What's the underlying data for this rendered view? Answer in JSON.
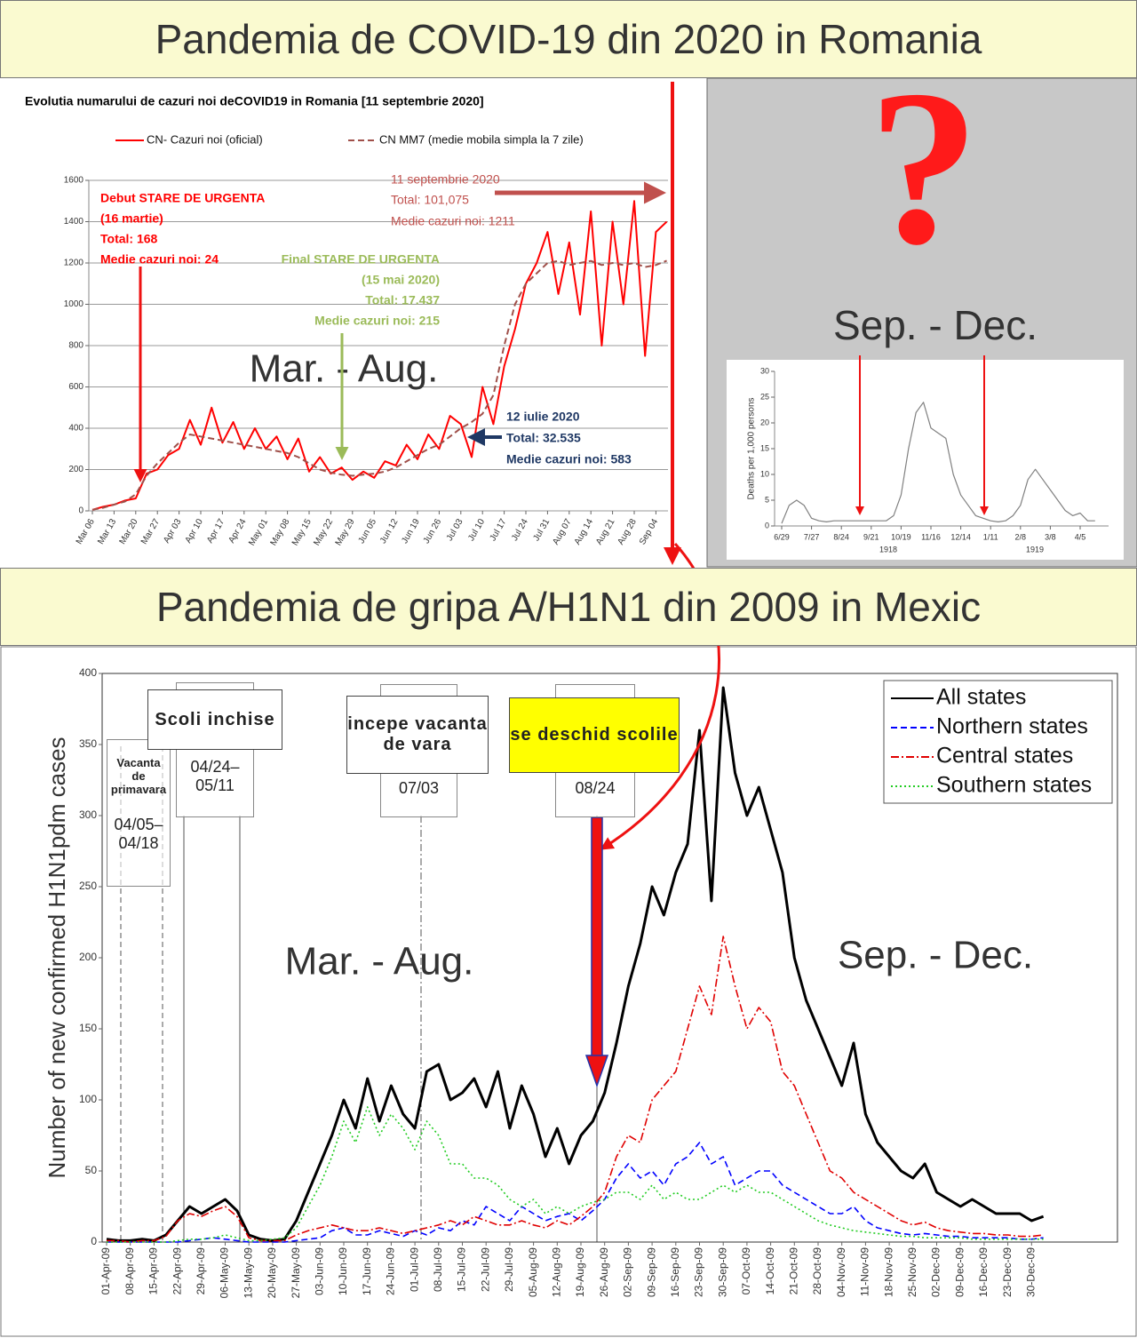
{
  "banners": [
    "Pandemia de COVID-19 din 2020 in Romania",
    "Pandemia de gripa A/H1N1 din 2009 in Mexic"
  ],
  "panel": {
    "symbol": "?",
    "label": "Sep. - Dec."
  },
  "chart_data": [
    {
      "type": "line",
      "title": "Evolutia numarului de cazuri noi deCOVID19  in Romania [11 septembrie 2020]",
      "categories": [
        "Mar 06",
        null,
        "Mar 13",
        null,
        "Mar 20",
        null,
        "Mar 27",
        null,
        "Apr 03",
        null,
        "Apr 10",
        null,
        "Apr 17",
        null,
        "Apr 24",
        null,
        "May 01",
        null,
        "May 08",
        null,
        "May 15",
        null,
        "May 22",
        null,
        "May 29",
        null,
        "Jun 05",
        null,
        "Jun 12",
        null,
        "Jun 19",
        null,
        "Jun 26",
        null,
        "Jul 03",
        null,
        "Jul 10",
        null,
        "Jul 17",
        null,
        "Jul 24",
        null,
        "Jul 31",
        null,
        "Aug 07",
        null,
        "Aug 14",
        null,
        "Aug 21",
        null,
        "Aug 28",
        null,
        "Sep 04",
        null
      ],
      "series": [
        {
          "name": "CN- Cazuri noi (oficial)",
          "color": "#ff0000",
          "dash": "solid",
          "values": [
            5,
            20,
            30,
            50,
            60,
            180,
            200,
            270,
            300,
            440,
            320,
            500,
            330,
            430,
            300,
            400,
            300,
            360,
            250,
            350,
            190,
            260,
            180,
            210,
            150,
            190,
            160,
            240,
            220,
            320,
            250,
            370,
            300,
            460,
            420,
            260,
            600,
            420,
            700,
            880,
            1100,
            1200,
            1350,
            1050,
            1300,
            950,
            1450,
            800,
            1400,
            1000,
            1500,
            750,
            1350,
            1400
          ]
        },
        {
          "name": "CN MM7 (medie mobila simpla la 7 zile)",
          "color": "#a0504a",
          "dash": "dashed",
          "values": [
            5,
            15,
            30,
            45,
            80,
            170,
            230,
            280,
            330,
            370,
            360,
            350,
            340,
            330,
            320,
            310,
            300,
            290,
            280,
            260,
            230,
            200,
            185,
            175,
            170,
            175,
            180,
            190,
            210,
            240,
            270,
            300,
            320,
            360,
            400,
            430,
            470,
            560,
            800,
            1000,
            1100,
            1150,
            1200,
            1210,
            1190,
            1200,
            1210,
            1190,
            1200,
            1190,
            1200,
            1180,
            1190,
            1211
          ]
        }
      ],
      "ylim": [
        0,
        1600
      ],
      "yticks": [
        0,
        200,
        400,
        600,
        800,
        1000,
        1200,
        1400,
        1600
      ],
      "grid": true,
      "annotations": [
        "Debut STARE DE URGENTA",
        "(16 martie)",
        "Total: 168",
        "Medie cazuri noi: 24",
        "Final STARE DE URGENTA",
        "(15 mai 2020)",
        "Total: 17.437",
        "Medie cazuri noi: 215",
        "11 septembrie 2020",
        "Total: 101,075",
        "Medie cazuri noi: 1211",
        "12 iulie 2020",
        "Total: 32.535",
        "Medie cazuri noi: 583",
        "Mar. - Aug."
      ]
    },
    {
      "type": "line",
      "ylabel": "Deaths per 1,000 persons",
      "categories": [
        "6/29",
        null,
        null,
        null,
        "7/27",
        null,
        null,
        null,
        "8/24",
        null,
        null,
        null,
        "9/21",
        null,
        null,
        null,
        "10/19",
        null,
        null,
        null,
        "11/16",
        null,
        null,
        null,
        "12/14",
        null,
        null,
        null,
        "1/11",
        null,
        null,
        null,
        "2/8",
        null,
        null,
        null,
        "3/8",
        null,
        null,
        null,
        "4/5",
        null,
        null
      ],
      "x_groups": [
        "1918",
        "1919"
      ],
      "color": "#808080",
      "values": [
        0.5,
        4,
        5,
        4,
        1.5,
        1,
        0.8,
        1,
        1,
        1,
        1,
        1,
        1,
        1,
        1,
        2,
        6,
        15,
        22,
        24,
        19,
        18,
        17,
        10,
        6,
        4,
        2,
        1.5,
        1,
        0.8,
        1,
        2,
        4,
        9,
        11,
        9,
        7,
        5,
        3,
        2,
        2.5,
        1,
        1
      ],
      "ylim": [
        0,
        30
      ],
      "yticks": [
        0,
        5,
        10,
        15,
        20,
        25,
        30
      ],
      "grid": false
    },
    {
      "type": "line",
      "ylabel": "Number of new confirmed H1N1pdm cases",
      "categories": [
        "01-Apr-09",
        null,
        "08-Apr-09",
        null,
        "15-Apr-09",
        null,
        "22-Apr-09",
        null,
        "29-Apr-09",
        null,
        "06-May-09",
        null,
        "13-May-09",
        null,
        "20-May-09",
        null,
        "27-May-09",
        null,
        "03-Jun-09",
        null,
        "10-Jun-09",
        null,
        "17-Jun-09",
        null,
        "24-Jun-09",
        null,
        "01-Jul-09",
        null,
        "08-Jul-09",
        null,
        "15-Jul-09",
        null,
        "22-Jul-09",
        null,
        "29-Jul-09",
        null,
        "05-Aug-09",
        null,
        "12-Aug-09",
        null,
        "19-Aug-09",
        null,
        "26-Aug-09",
        null,
        "02-Sep-09",
        null,
        "09-Sep-09",
        null,
        "16-Sep-09",
        null,
        "23-Sep-09",
        null,
        "30-Sep-09",
        null,
        "07-Oct-09",
        null,
        "14-Oct-09",
        null,
        "21-Oct-09",
        null,
        "28-Oct-09",
        null,
        "04-Nov-09",
        null,
        "11-Nov-09",
        null,
        "18-Nov-09",
        null,
        "25-Nov-09",
        null,
        "02-Dec-09",
        null,
        "09-Dec-09",
        null,
        "16-Dec-09",
        null,
        "23-Dec-09",
        null,
        "30-Dec-09",
        null
      ],
      "series": [
        {
          "name": "All states",
          "color": "#000000",
          "dash": "solid",
          "values": [
            2,
            1,
            1,
            2,
            1,
            5,
            15,
            25,
            20,
            25,
            30,
            22,
            5,
            2,
            1,
            2,
            15,
            35,
            55,
            75,
            100,
            80,
            115,
            85,
            110,
            90,
            80,
            120,
            125,
            100,
            105,
            115,
            95,
            120,
            80,
            110,
            90,
            60,
            80,
            55,
            75,
            85,
            105,
            140,
            180,
            210,
            250,
            230,
            260,
            280,
            360,
            240,
            390,
            330,
            300,
            320,
            290,
            260,
            200,
            170,
            150,
            130,
            110,
            140,
            90,
            70,
            60,
            50,
            45,
            55,
            35,
            30,
            25,
            30,
            25,
            20,
            20,
            20,
            15,
            18
          ]
        },
        {
          "name": "Northern states",
          "color": "#0000ff",
          "dash": "dashed",
          "values": [
            0,
            0,
            0,
            0,
            0,
            0,
            0,
            1,
            2,
            3,
            2,
            1,
            0,
            0,
            0,
            0,
            1,
            2,
            3,
            8,
            10,
            5,
            5,
            8,
            6,
            4,
            8,
            5,
            10,
            8,
            15,
            12,
            25,
            20,
            15,
            25,
            20,
            15,
            18,
            20,
            15,
            22,
            30,
            45,
            55,
            45,
            50,
            40,
            55,
            60,
            70,
            55,
            60,
            40,
            45,
            50,
            50,
            40,
            35,
            30,
            25,
            20,
            20,
            25,
            15,
            10,
            8,
            6,
            5,
            6,
            5,
            4,
            4,
            3,
            3,
            3,
            3,
            2,
            2,
            3
          ]
        },
        {
          "name": "Central states",
          "color": "#e00000",
          "dash": "dashdot",
          "values": [
            1,
            1,
            0,
            1,
            1,
            4,
            15,
            20,
            18,
            22,
            25,
            18,
            3,
            1,
            1,
            1,
            5,
            8,
            10,
            12,
            10,
            8,
            8,
            10,
            8,
            6,
            8,
            10,
            12,
            15,
            12,
            18,
            15,
            12,
            12,
            15,
            12,
            10,
            15,
            12,
            18,
            25,
            35,
            60,
            75,
            70,
            100,
            110,
            120,
            150,
            180,
            160,
            215,
            180,
            150,
            165,
            155,
            120,
            110,
            90,
            70,
            50,
            45,
            35,
            30,
            25,
            20,
            15,
            12,
            14,
            10,
            8,
            7,
            6,
            6,
            5,
            5,
            4,
            4,
            5
          ]
        },
        {
          "name": "Southern states",
          "color": "#22cc22",
          "dash": "dotted",
          "values": [
            0,
            0,
            0,
            0,
            0,
            0,
            1,
            2,
            2,
            3,
            5,
            3,
            1,
            1,
            2,
            3,
            10,
            25,
            40,
            60,
            85,
            70,
            95,
            75,
            90,
            80,
            65,
            85,
            75,
            55,
            55,
            45,
            45,
            40,
            30,
            25,
            30,
            20,
            25,
            20,
            25,
            28,
            30,
            35,
            35,
            30,
            40,
            30,
            35,
            30,
            30,
            35,
            40,
            35,
            40,
            35,
            35,
            30,
            25,
            20,
            15,
            12,
            10,
            8,
            7,
            6,
            5,
            4,
            4,
            3,
            3,
            3,
            3,
            2,
            2,
            2,
            2,
            2,
            2,
            2
          ]
        }
      ],
      "ylim": [
        0,
        400
      ],
      "yticks": [
        0,
        50,
        100,
        150,
        200,
        250,
        300,
        350,
        400
      ],
      "grid": false,
      "annotations": [
        "Vacanta de primavara",
        "04/05–04/18",
        "Scoli inchise",
        "04/24–05/11",
        "incepe vacanta de vara",
        "07/03",
        "se deschid scolile",
        "08/24",
        "Mar. - Aug.",
        "Sep. - Dec."
      ]
    }
  ]
}
